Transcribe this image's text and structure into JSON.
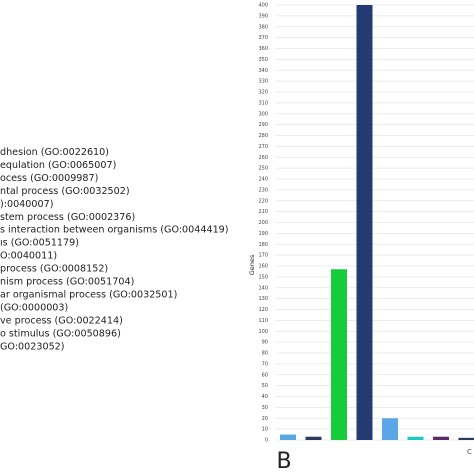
{
  "list": {
    "items": [
      "dhesion (GO:0022610)",
      "equlation (GO:0065007)",
      "ocess (GO:0009987)",
      "ntal process (GO:0032502)",
      "):0040007)",
      "stem process (GO:0002376)",
      "s interaction between organisms (GO:0044419)",
      "ıs (GO:0051179)",
      "O:0040011)",
      "process (GO:0008152)",
      "nism process (GO:0051704)",
      "ar organismal process (GO:0032501)",
      "(GO:0000003)",
      "ve process (GO:0022414)",
      "o stimulus (GO:0050896)",
      "GO:0023052)"
    ]
  },
  "chart_data": {
    "type": "bar",
    "ylabel": "Genes",
    "panel_label": "B",
    "corner_label": "C",
    "categories": [
      null,
      null,
      null,
      null,
      null,
      null,
      null,
      null
    ],
    "values": [
      5,
      3,
      157,
      400,
      20,
      3,
      3,
      2
    ],
    "colors": [
      "#5aa6e6",
      "#2b3a5e",
      "#17cc3a",
      "#233a72",
      "#5aa6e6",
      "#1fc7c2",
      "#5a2a6a",
      "#2b3a5e"
    ],
    "ylim": [
      0,
      400
    ],
    "yticks": [
      0,
      10,
      20,
      30,
      40,
      50,
      60,
      70,
      80,
      90,
      100,
      110,
      120,
      130,
      140,
      150,
      160,
      170,
      180,
      190,
      200,
      210,
      220,
      230,
      240,
      250,
      260,
      270,
      280,
      290,
      300,
      310,
      320,
      330,
      340,
      350,
      360,
      370,
      380,
      390,
      400
    ],
    "grid": true
  }
}
